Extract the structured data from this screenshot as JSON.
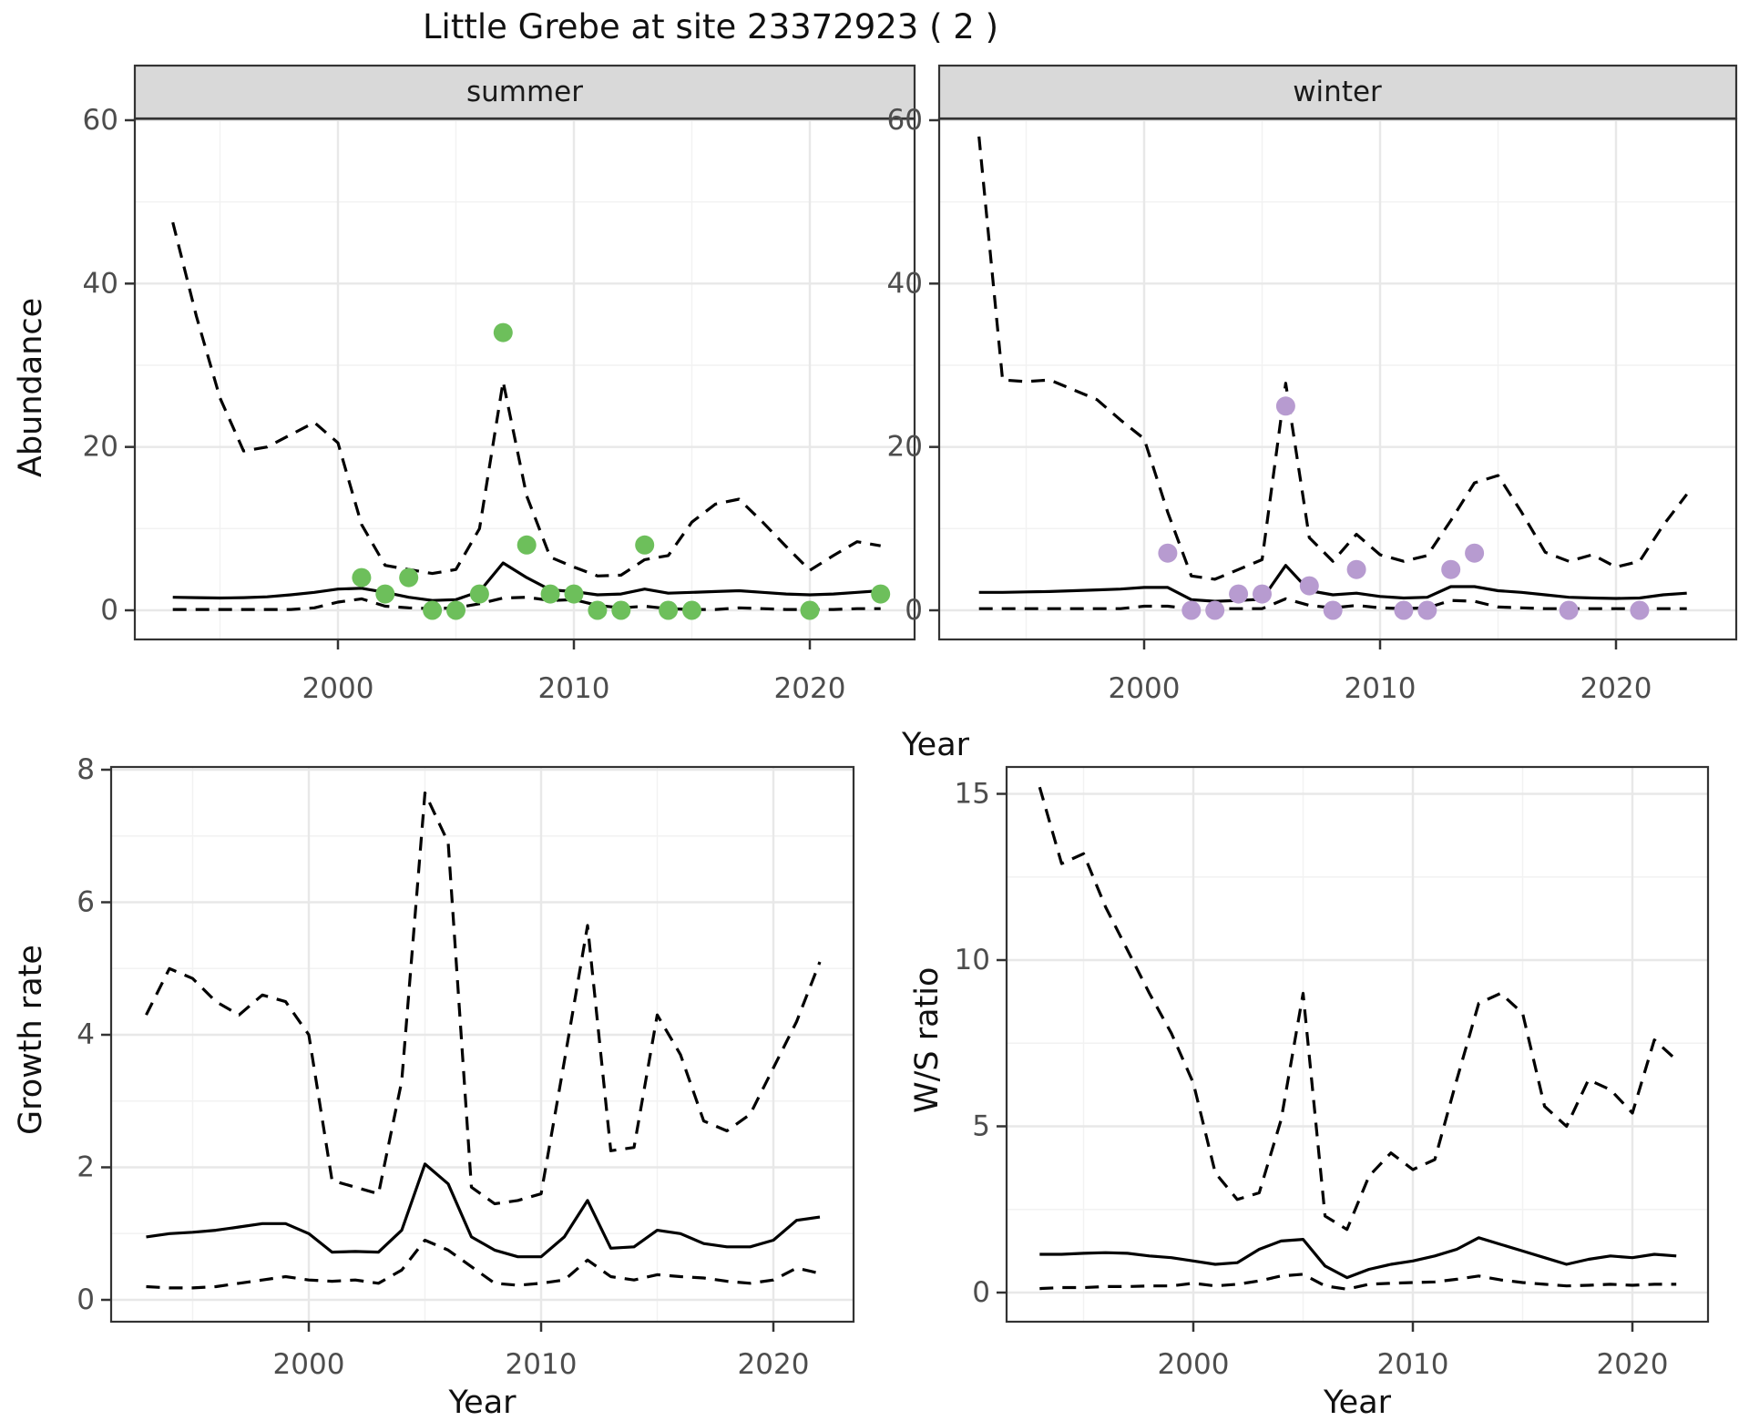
{
  "title": "Little Grebe at site 23372923 ( 2 )",
  "labels": {
    "y_top": "Abundance",
    "x_top": "Year",
    "y_growth": "Growth rate",
    "x_growth": "Year",
    "y_ws": "W/S ratio",
    "x_ws": "Year",
    "facet_summer": "summer",
    "facet_winter": "winter"
  },
  "colors": {
    "summer_point": "#6dbf5b",
    "winter_point": "#b79bd0",
    "line": "#000000",
    "strip_bg": "#d9d9d9",
    "panel_border": "#333333",
    "grid_major": "#e8e8e8",
    "grid_minor": "#f2f2f2",
    "tick_label": "#4d4d4d",
    "tick_mark": "#333333"
  },
  "chart_data": [
    {
      "type": "line",
      "panel": "summer",
      "facet": "summer",
      "title": "Abundance - summer facet",
      "xlabel": "Year",
      "ylabel": "Abundance",
      "xlim": [
        1991.5,
        2024.5
      ],
      "ylim": [
        0,
        60
      ],
      "x_ticks": [
        2000,
        2010,
        2020
      ],
      "y_ticks": [
        0,
        20,
        40,
        60
      ],
      "grid": true,
      "legend_position": "none",
      "years": [
        1993,
        1994,
        1995,
        1996,
        1997,
        1998,
        1999,
        2000,
        2001,
        2002,
        2003,
        2004,
        2005,
        2006,
        2007,
        2008,
        2009,
        2010,
        2011,
        2012,
        2013,
        2014,
        2015,
        2016,
        2017,
        2018,
        2019,
        2020,
        2021,
        2022,
        2023
      ],
      "series": [
        {
          "name": "median",
          "style": "solid",
          "values": [
            1.6,
            1.55,
            1.5,
            1.55,
            1.65,
            1.9,
            2.2,
            2.6,
            2.7,
            2.2,
            1.6,
            1.2,
            1.3,
            2.3,
            5.8,
            4.0,
            2.5,
            2.3,
            1.9,
            2.0,
            2.6,
            2.1,
            2.2,
            2.3,
            2.4,
            2.2,
            2.0,
            1.9,
            2.0,
            2.2,
            2.4
          ]
        },
        {
          "name": "upper_ci",
          "style": "dashed",
          "values": [
            47.5,
            36,
            26,
            19.5,
            20,
            21.5,
            23,
            20.5,
            10.5,
            5.5,
            5,
            4.5,
            5,
            10,
            28,
            14,
            6.5,
            5.3,
            4.2,
            4.3,
            6.2,
            6.7,
            10.8,
            13,
            13.6,
            10.8,
            7.8,
            4.9,
            6.7,
            8.4,
            7.9
          ]
        },
        {
          "name": "lower_ci",
          "style": "dashed",
          "values": [
            0.1,
            0.1,
            0.1,
            0.1,
            0.1,
            0.1,
            0.3,
            1.0,
            1.4,
            0.5,
            0.3,
            0.2,
            0.3,
            0.8,
            1.5,
            1.6,
            1.2,
            1.3,
            0.6,
            0.3,
            0.5,
            0.2,
            0.1,
            0.1,
            0.3,
            0.2,
            0.1,
            0.1,
            0.1,
            0.2,
            0.2
          ]
        }
      ],
      "observed_points": {
        "color": "#6dbf5b",
        "data": [
          [
            2001,
            4
          ],
          [
            2002,
            2
          ],
          [
            2003,
            4
          ],
          [
            2004,
            0
          ],
          [
            2005,
            0
          ],
          [
            2006,
            2
          ],
          [
            2007,
            34
          ],
          [
            2008,
            8
          ],
          [
            2009,
            2
          ],
          [
            2010,
            2
          ],
          [
            2011,
            0
          ],
          [
            2012,
            0
          ],
          [
            2013,
            8
          ],
          [
            2014,
            0
          ],
          [
            2015,
            0
          ],
          [
            2020,
            0
          ],
          [
            2023,
            2
          ]
        ]
      }
    },
    {
      "type": "line",
      "panel": "winter",
      "facet": "winter",
      "title": "Abundance - winter facet",
      "xlabel": "Year",
      "ylabel": "Abundance",
      "xlim": [
        1991.5,
        2024.5
      ],
      "ylim": [
        0,
        60
      ],
      "x_ticks": [
        2000,
        2010,
        2020
      ],
      "y_ticks": [
        0,
        20,
        40,
        60
      ],
      "grid": true,
      "legend_position": "none",
      "years": [
        1993,
        1994,
        1995,
        1996,
        1997,
        1998,
        1999,
        2000,
        2001,
        2002,
        2003,
        2004,
        2005,
        2006,
        2007,
        2008,
        2009,
        2010,
        2011,
        2012,
        2013,
        2014,
        2015,
        2016,
        2017,
        2018,
        2019,
        2020,
        2021,
        2022,
        2023
      ],
      "series": [
        {
          "name": "median",
          "style": "solid",
          "values": [
            2.2,
            2.2,
            2.25,
            2.3,
            2.4,
            2.5,
            2.6,
            2.8,
            2.8,
            1.3,
            1.1,
            1.2,
            1.35,
            5.5,
            2.4,
            1.9,
            2.1,
            1.7,
            1.5,
            1.6,
            2.9,
            2.9,
            2.4,
            2.2,
            1.9,
            1.6,
            1.5,
            1.45,
            1.5,
            1.9,
            2.1
          ]
        },
        {
          "name": "upper_ci",
          "style": "dashed",
          "values": [
            58,
            28.2,
            28,
            28.2,
            27,
            25.8,
            23.3,
            21,
            12,
            4.2,
            3.8,
            5,
            6.2,
            27.8,
            8.9,
            6,
            9.3,
            6.8,
            6,
            6.7,
            11,
            15.6,
            16.5,
            12,
            7.1,
            6,
            6.8,
            5.3,
            6,
            10.4,
            14.2
          ]
        },
        {
          "name": "lower_ci",
          "style": "dashed",
          "values": [
            0.2,
            0.2,
            0.2,
            0.2,
            0.2,
            0.2,
            0.2,
            0.5,
            0.5,
            0.2,
            0.2,
            0.2,
            0.2,
            1.4,
            0.6,
            0.3,
            0.6,
            0.3,
            0.2,
            0.3,
            1.2,
            1.1,
            0.4,
            0.3,
            0.2,
            0.2,
            0.2,
            0.2,
            0.2,
            0.2,
            0.2
          ]
        }
      ],
      "observed_points": {
        "color": "#b79bd0",
        "data": [
          [
            2001,
            7
          ],
          [
            2002,
            0
          ],
          [
            2003,
            0
          ],
          [
            2004,
            2
          ],
          [
            2005,
            2
          ],
          [
            2006,
            25
          ],
          [
            2007,
            3
          ],
          [
            2008,
            0
          ],
          [
            2009,
            5
          ],
          [
            2011,
            0
          ],
          [
            2012,
            0
          ],
          [
            2013,
            5
          ],
          [
            2014,
            7
          ],
          [
            2018,
            0
          ],
          [
            2021,
            0
          ]
        ]
      }
    },
    {
      "type": "line",
      "panel": "growth",
      "title": "Growth rate",
      "xlabel": "Year",
      "ylabel": "Growth rate",
      "xlim": [
        1991.5,
        2023.5
      ],
      "ylim": [
        0,
        8
      ],
      "x_ticks": [
        2000,
        2010,
        2020
      ],
      "y_ticks": [
        0,
        2,
        4,
        6,
        8
      ],
      "grid": true,
      "legend_position": "none",
      "years": [
        1993,
        1994,
        1995,
        1996,
        1997,
        1998,
        1999,
        2000,
        2001,
        2002,
        2003,
        2004,
        2005,
        2006,
        2007,
        2008,
        2009,
        2010,
        2011,
        2012,
        2013,
        2014,
        2015,
        2016,
        2017,
        2018,
        2019,
        2020,
        2021,
        2022
      ],
      "series": [
        {
          "name": "median",
          "style": "solid",
          "values": [
            0.95,
            1.0,
            1.02,
            1.05,
            1.1,
            1.15,
            1.15,
            1.0,
            0.72,
            0.73,
            0.72,
            1.05,
            2.05,
            1.75,
            0.95,
            0.75,
            0.65,
            0.65,
            0.95,
            1.5,
            0.78,
            0.8,
            1.05,
            1.0,
            0.85,
            0.8,
            0.8,
            0.9,
            1.2,
            1.25
          ]
        },
        {
          "name": "upper_ci",
          "style": "dashed",
          "values": [
            4.3,
            5.0,
            4.85,
            4.5,
            4.3,
            4.6,
            4.5,
            4.0,
            1.8,
            1.7,
            1.6,
            3.3,
            7.65,
            6.9,
            1.7,
            1.45,
            1.5,
            1.6,
            3.6,
            5.65,
            2.25,
            2.3,
            4.3,
            3.7,
            2.7,
            2.55,
            2.8,
            3.5,
            4.2,
            5.1
          ]
        },
        {
          "name": "lower_ci",
          "style": "dashed",
          "values": [
            0.2,
            0.18,
            0.18,
            0.2,
            0.25,
            0.3,
            0.35,
            0.3,
            0.28,
            0.3,
            0.25,
            0.45,
            0.9,
            0.75,
            0.5,
            0.25,
            0.22,
            0.25,
            0.3,
            0.6,
            0.35,
            0.3,
            0.38,
            0.35,
            0.33,
            0.28,
            0.25,
            0.3,
            0.48,
            0.4
          ]
        }
      ]
    },
    {
      "type": "line",
      "panel": "ws",
      "title": "W/S ratio",
      "xlabel": "Year",
      "ylabel": "W/S ratio",
      "xlim": [
        1991.5,
        2023.5
      ],
      "ylim": [
        0,
        15.8
      ],
      "x_ticks": [
        2000,
        2010,
        2020
      ],
      "y_ticks": [
        0,
        5,
        10,
        15
      ],
      "grid": true,
      "legend_position": "none",
      "years": [
        1993,
        1994,
        1995,
        1996,
        1997,
        1998,
        1999,
        2000,
        2001,
        2002,
        2003,
        2004,
        2005,
        2006,
        2007,
        2008,
        2009,
        2010,
        2011,
        2012,
        2013,
        2014,
        2015,
        2016,
        2017,
        2018,
        2019,
        2020,
        2021,
        2022
      ],
      "series": [
        {
          "name": "median",
          "style": "solid",
          "values": [
            1.15,
            1.15,
            1.18,
            1.2,
            1.18,
            1.1,
            1.05,
            0.95,
            0.85,
            0.9,
            1.3,
            1.55,
            1.6,
            0.8,
            0.45,
            0.7,
            0.85,
            0.95,
            1.1,
            1.3,
            1.65,
            1.45,
            1.25,
            1.05,
            0.85,
            1.0,
            1.1,
            1.05,
            1.15,
            1.1
          ]
        },
        {
          "name": "upper_ci",
          "style": "dashed",
          "values": [
            15.2,
            12.9,
            13.2,
            11.6,
            10.3,
            9.0,
            7.8,
            6.3,
            3.6,
            2.8,
            3.0,
            5.2,
            9.0,
            2.3,
            1.9,
            3.5,
            4.2,
            3.7,
            4.0,
            6.4,
            8.7,
            9.0,
            8.4,
            5.6,
            5.0,
            6.4,
            6.1,
            5.4,
            7.6,
            7.0
          ]
        },
        {
          "name": "lower_ci",
          "style": "dashed",
          "values": [
            0.12,
            0.15,
            0.15,
            0.18,
            0.18,
            0.2,
            0.2,
            0.28,
            0.2,
            0.25,
            0.35,
            0.5,
            0.55,
            0.2,
            0.1,
            0.25,
            0.28,
            0.3,
            0.32,
            0.4,
            0.5,
            0.38,
            0.3,
            0.25,
            0.2,
            0.22,
            0.25,
            0.22,
            0.25,
            0.25
          ]
        }
      ]
    }
  ]
}
